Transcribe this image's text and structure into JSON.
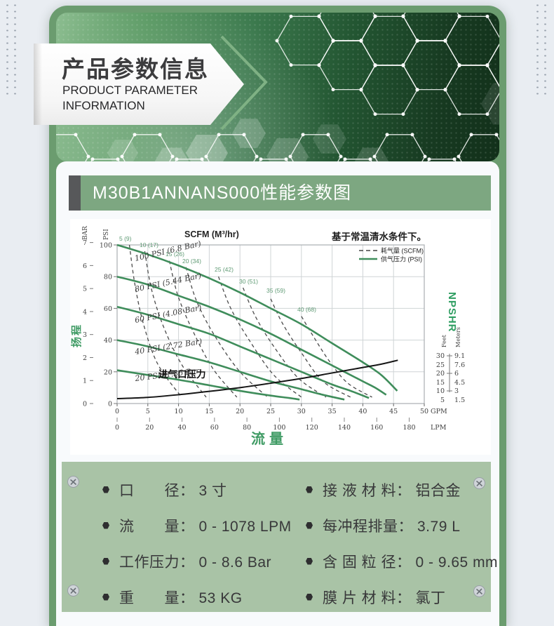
{
  "page": {
    "bg": "#e9edf2",
    "frame_green": "#6b9c6f",
    "param_bg": "#a9c3a6",
    "title_bar_green": "#7da781"
  },
  "header": {
    "title_cn": "产品参数信息",
    "title_en_line1": "PRODUCT PARAMETER",
    "title_en_line2": "INFORMATION"
  },
  "section": {
    "title": "M30B1ANNANS000性能参数图"
  },
  "chart_data": {
    "type": "line",
    "title": "SCFM (M³/hr)",
    "note": "基于常温清水条件下。",
    "xlabel": "流量",
    "ylabel": "扬程",
    "legend": [
      {
        "label": "耗气量 (SCFM)",
        "style": "dashed"
      },
      {
        "label": "供气压力 (PSI)",
        "style": "solid"
      }
    ],
    "x_axis_gpm": {
      "unit": "GPM",
      "ticks": [
        0,
        5,
        10,
        15,
        20,
        25,
        30,
        35,
        40,
        45,
        50
      ],
      "range": [
        0,
        50
      ]
    },
    "x_axis_lpm": {
      "unit": "LPM",
      "ticks": [
        0,
        20,
        40,
        60,
        80,
        100,
        120,
        140,
        160,
        180
      ]
    },
    "y_axis_psi": {
      "unit": "PSI",
      "ticks": [
        0,
        20,
        40,
        60,
        80,
        100
      ],
      "range": [
        0,
        100
      ]
    },
    "y_axis_bar": {
      "unit": "BAR",
      "ticks": [
        0,
        1,
        2,
        3,
        4,
        5,
        6,
        7
      ]
    },
    "right_axis": {
      "label": "NPSHR",
      "feet_label": "Feet",
      "meters_label": "Meters",
      "feet": [
        30,
        25,
        20,
        15,
        10,
        5
      ],
      "meters": [
        "9.1",
        "7.6",
        "6",
        "4.5",
        "3",
        "1.5"
      ]
    },
    "supply_curves": [
      {
        "label": "100 PSI (6.8 Bar)",
        "points": [
          [
            0,
            100
          ],
          [
            5,
            94
          ],
          [
            10,
            87
          ],
          [
            15,
            79
          ],
          [
            20,
            70
          ],
          [
            25,
            60
          ],
          [
            30,
            50
          ],
          [
            35,
            38
          ],
          [
            40,
            26
          ],
          [
            43,
            18
          ],
          [
            45.6,
            8
          ]
        ]
      },
      {
        "label": "80 PSI (5.44 Bar)",
        "points": [
          [
            0,
            80
          ],
          [
            5,
            75
          ],
          [
            10,
            68
          ],
          [
            15,
            61
          ],
          [
            20,
            53
          ],
          [
            25,
            44
          ],
          [
            30,
            34
          ],
          [
            35,
            24
          ],
          [
            40,
            14
          ],
          [
            42,
            10
          ],
          [
            43.8,
            5.5
          ]
        ]
      },
      {
        "label": "60 PSI (4.08 Bar)",
        "points": [
          [
            0,
            61
          ],
          [
            5,
            56
          ],
          [
            10,
            50
          ],
          [
            15,
            44
          ],
          [
            20,
            36
          ],
          [
            25,
            28
          ],
          [
            30,
            20
          ],
          [
            35,
            12
          ],
          [
            38,
            8
          ],
          [
            41,
            3.5
          ]
        ]
      },
      {
        "label": "40 PSI (2.72 Bar)",
        "points": [
          [
            0,
            40
          ],
          [
            5,
            36
          ],
          [
            10,
            31
          ],
          [
            15,
            26
          ],
          [
            20,
            20
          ],
          [
            25,
            14
          ],
          [
            30,
            9
          ],
          [
            33.5,
            5.5
          ],
          [
            37,
            2.5
          ]
        ]
      },
      {
        "label": "20 PSI (1.36 Bar",
        "points": [
          [
            0,
            21
          ],
          [
            5,
            18
          ],
          [
            10,
            15
          ],
          [
            15,
            11.5
          ],
          [
            20,
            8
          ],
          [
            25,
            5
          ],
          [
            28,
            3.5
          ],
          [
            29.7,
            2.5
          ]
        ]
      }
    ],
    "air_curves": [
      {
        "label": "5 (9)",
        "points": [
          [
            2,
            100
          ],
          [
            2.9,
            75
          ],
          [
            4.3,
            50
          ],
          [
            6.6,
            25
          ],
          [
            10.5,
            4
          ]
        ]
      },
      {
        "label": "10 (17)",
        "points": [
          [
            4.5,
            96
          ],
          [
            5.6,
            72
          ],
          [
            7.6,
            48
          ],
          [
            10.6,
            24
          ],
          [
            14.5,
            4
          ]
        ]
      },
      {
        "label": "15 (26)",
        "points": [
          [
            8.5,
            90
          ],
          [
            9.9,
            68
          ],
          [
            12.3,
            46
          ],
          [
            15.6,
            22
          ],
          [
            19.5,
            4
          ]
        ]
      },
      {
        "label": "20 (34)",
        "points": [
          [
            11.2,
            86
          ],
          [
            13,
            64
          ],
          [
            16,
            42
          ],
          [
            20,
            20
          ],
          [
            24.5,
            4
          ]
        ]
      },
      {
        "label": "25 (42)",
        "points": [
          [
            16.5,
            80
          ],
          [
            18.5,
            60
          ],
          [
            21.5,
            40
          ],
          [
            25.5,
            18
          ],
          [
            30,
            4
          ]
        ]
      },
      {
        "label": "30 (51)",
        "points": [
          [
            20.5,
            73
          ],
          [
            22.5,
            55
          ],
          [
            25.5,
            36
          ],
          [
            29.5,
            16
          ],
          [
            34,
            4
          ]
        ]
      },
      {
        "label": "35 (59)",
        "points": [
          [
            25,
            66
          ],
          [
            27,
            50
          ],
          [
            30,
            32
          ],
          [
            33.5,
            14
          ],
          [
            38,
            4
          ]
        ]
      },
      {
        "label": "40 (68)",
        "points": [
          [
            30,
            55
          ],
          [
            32,
            42
          ],
          [
            34.5,
            27
          ],
          [
            37.5,
            13
          ],
          [
            41.5,
            4
          ]
        ]
      }
    ],
    "npshr_curve": {
      "label": "进气口压力",
      "points_gpm_feet": [
        [
          0,
          5.8
        ],
        [
          5,
          6.5
        ],
        [
          10,
          8
        ],
        [
          15,
          9.9
        ],
        [
          20,
          12
        ],
        [
          25,
          14.5
        ],
        [
          30,
          17.2
        ],
        [
          35,
          20.3
        ],
        [
          40,
          23.4
        ],
        [
          43,
          25.3
        ],
        [
          45.7,
          27.5
        ]
      ]
    }
  },
  "params": {
    "left": [
      {
        "label": "口　　径：",
        "value": "3 寸"
      },
      {
        "label": "流　　量：",
        "value": "0 - 1078 LPM"
      },
      {
        "label": "工作压力：",
        "value": "0 - 8.6 Bar"
      },
      {
        "label": "重　　量：",
        "value": "53 KG"
      }
    ],
    "right": [
      {
        "label": "接 液 材 料：",
        "value": "铝合金"
      },
      {
        "label": "每冲程排量：",
        "value": "3.79 L"
      },
      {
        "label": "含 固 粒 径：",
        "value": "0 - 9.65 mm"
      },
      {
        "label": "膜 片 材 料：",
        "value": "氯丁"
      }
    ]
  }
}
